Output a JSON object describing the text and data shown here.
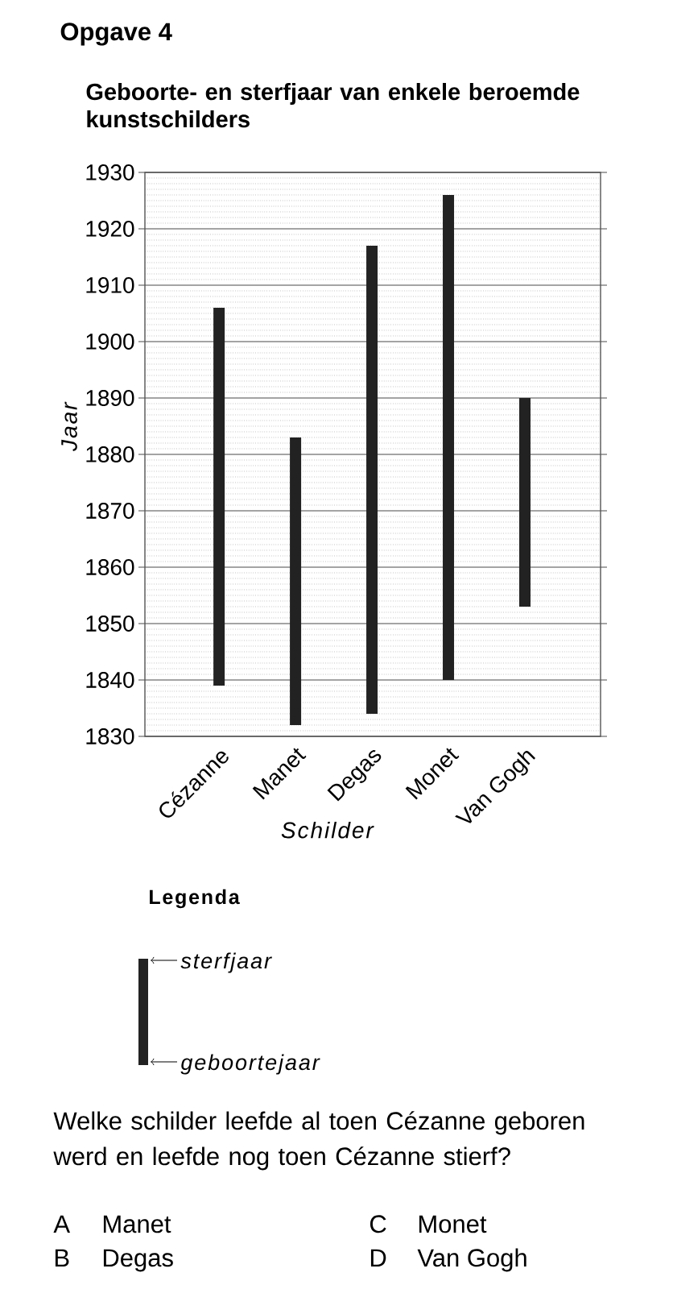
{
  "chart_data": {
    "type": "bar",
    "title": "Geboorte- en sterfjaar van enkele beroemde kunstschilders",
    "xlabel": "Schilder",
    "ylabel": "Jaar",
    "categories": [
      "Cézanne",
      "Manet",
      "Degas",
      "Monet",
      "Van Gogh"
    ],
    "base": [
      1839,
      1832,
      1834,
      1840,
      1853
    ],
    "values": [
      67,
      51,
      83,
      86,
      37
    ],
    "color": "#222222",
    "ylim": [
      1830,
      1930
    ],
    "yticks": [
      1830,
      1840,
      1850,
      1860,
      1870,
      1880,
      1890,
      1900,
      1910,
      1920,
      1930
    ],
    "grid": "y",
    "annotations": [
      "Opgave 4",
      "Legenda",
      "sterfjaar",
      "geboortejaar",
      "Welke schilder leefde al toen Cézanne geboren werd en leefde nog toen Cézanne stierf?",
      "A",
      "Manet",
      "B",
      "Degas",
      "C",
      "Monet",
      "D",
      "Van Gogh"
    ]
  }
}
